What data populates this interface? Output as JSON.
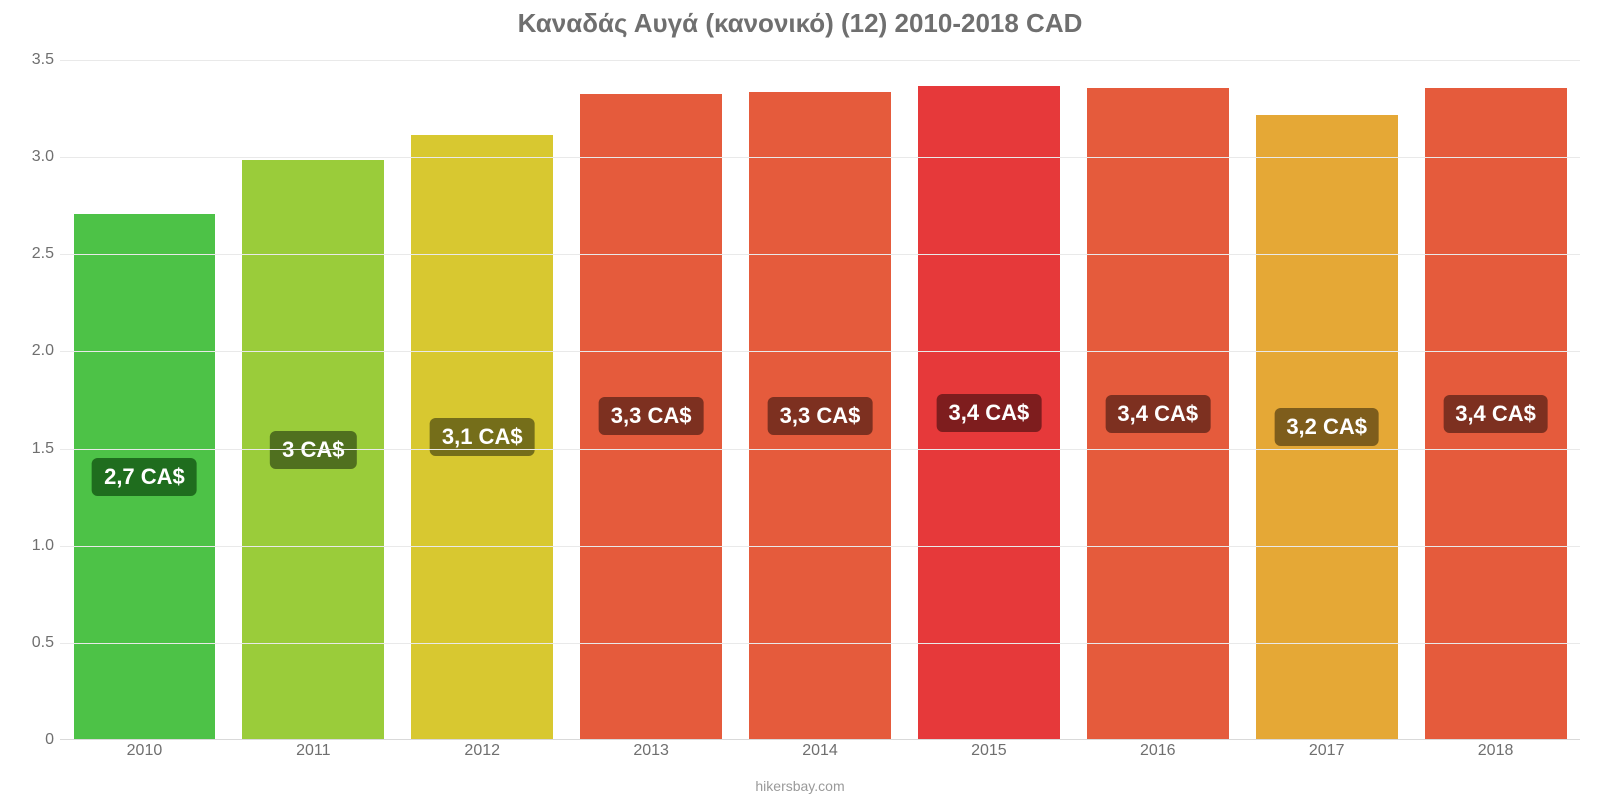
{
  "chart": {
    "type": "bar",
    "title": "Καναδάς Αυγά (κανονικό) (12) 2010-2018 CAD",
    "title_fontsize": 26,
    "title_color": "#6f6f6f",
    "background_color": "#ffffff",
    "grid_color": "#e9e9e9",
    "axis_color": "#d9d9d9",
    "tick_label_color": "#6f6f6f",
    "tick_label_fontsize": 16,
    "bar_label_fontsize": 22,
    "bar_label_text_color": "#ffffff",
    "bar_width_ratio": 0.84,
    "ylim": [
      0,
      3.5
    ],
    "yticks": [
      {
        "value": 0,
        "label": "0"
      },
      {
        "value": 0.5,
        "label": "0.5"
      },
      {
        "value": 1.0,
        "label": "1.0"
      },
      {
        "value": 1.5,
        "label": "1.5"
      },
      {
        "value": 2.0,
        "label": "2.0"
      },
      {
        "value": 2.5,
        "label": "2.5"
      },
      {
        "value": 3.0,
        "label": "3.0"
      },
      {
        "value": 3.5,
        "label": "3.5"
      }
    ],
    "categories": [
      "2010",
      "2011",
      "2012",
      "2013",
      "2014",
      "2015",
      "2016",
      "2017",
      "2018"
    ],
    "values": [
      2.7,
      2.98,
      3.11,
      3.32,
      3.33,
      3.36,
      3.35,
      3.21,
      3.35
    ],
    "value_labels": [
      "2,7 CA$",
      "3 CA$",
      "3,1 CA$",
      "3,3 CA$",
      "3,3 CA$",
      "3,4 CA$",
      "3,4 CA$",
      "3,2 CA$",
      "3,4 CA$"
    ],
    "bar_colors": [
      "#4dc247",
      "#9acc3a",
      "#d8c830",
      "#e55b3c",
      "#e55b3c",
      "#e6393a",
      "#e55b3c",
      "#e5a836",
      "#e55b3c"
    ],
    "label_bg_colors": [
      "#1f6d1e",
      "#50701f",
      "#756e1a",
      "#7d3020",
      "#7d3020",
      "#7e1d1e",
      "#7d3020",
      "#7e5d1c",
      "#7d3020"
    ],
    "attribution": "hikersbay.com",
    "attribution_color": "#9a9a9a",
    "attribution_fontsize": 14
  }
}
